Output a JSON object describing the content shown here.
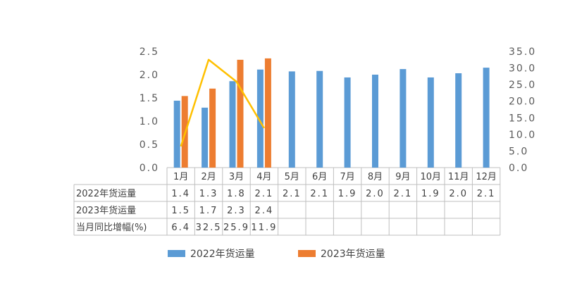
{
  "chart_data": {
    "type": "bar",
    "categories": [
      "1月",
      "2月",
      "3月",
      "4月",
      "5月",
      "6月",
      "7月",
      "8月",
      "9月",
      "10月",
      "11月",
      "12月"
    ],
    "series": [
      {
        "name": "2022年货运量",
        "kind": "bar",
        "axis": "left",
        "color": "#5B9BD5",
        "values": [
          1.4,
          1.3,
          1.8,
          2.1,
          2.1,
          2.1,
          1.9,
          2.0,
          2.1,
          1.9,
          2.0,
          2.1
        ],
        "plot_values": [
          1.44,
          1.29,
          1.86,
          2.11,
          2.07,
          2.08,
          1.94,
          2.0,
          2.12,
          1.94,
          2.03,
          2.15
        ],
        "labels": [
          "1.4",
          "1.3",
          "1.8",
          "2.1",
          "2.1",
          "2.1",
          "1.9",
          "2.0",
          "2.1",
          "1.9",
          "2.0",
          "2.1"
        ]
      },
      {
        "name": "2023年货运量",
        "kind": "bar",
        "axis": "left",
        "color": "#ED7D31",
        "values": [
          1.5,
          1.7,
          2.3,
          2.4,
          null,
          null,
          null,
          null,
          null,
          null,
          null,
          null
        ],
        "plot_values": [
          1.54,
          1.7,
          2.32,
          2.35,
          null,
          null,
          null,
          null,
          null,
          null,
          null,
          null
        ],
        "labels": [
          "1.5",
          "1.7",
          "2.3",
          "2.4",
          "",
          "",
          "",
          "",
          "",
          "",
          "",
          ""
        ]
      },
      {
        "name": "当月同比增幅(%)",
        "kind": "line",
        "axis": "right",
        "color": "#FFC000",
        "values": [
          6.4,
          32.5,
          25.9,
          11.9,
          null,
          null,
          null,
          null,
          null,
          null,
          null,
          null
        ],
        "labels": [
          "6.4",
          "32.5",
          "25.9",
          "11.9",
          "",
          "",
          "",
          "",
          "",
          "",
          "",
          ""
        ]
      }
    ],
    "left_axis": {
      "ticks": [
        "0.0",
        "0.5",
        "1.0",
        "1.5",
        "2.0",
        "2.5"
      ],
      "ylim": [
        0,
        2.5
      ]
    },
    "right_axis": {
      "ticks": [
        "0.0",
        "5.0",
        "10.0",
        "15.0",
        "20.0",
        "25.0",
        "30.0",
        "35.0"
      ],
      "ylim": [
        0,
        35
      ]
    },
    "title": "",
    "xlabel": "",
    "ylabel": "",
    "grid": false,
    "legend": {
      "position": "bottom",
      "items": [
        {
          "label": "2022年货运量",
          "color": "#5B9BD5"
        },
        {
          "label": "2023年货运量",
          "color": "#ED7D31"
        }
      ]
    },
    "data_table": true
  }
}
